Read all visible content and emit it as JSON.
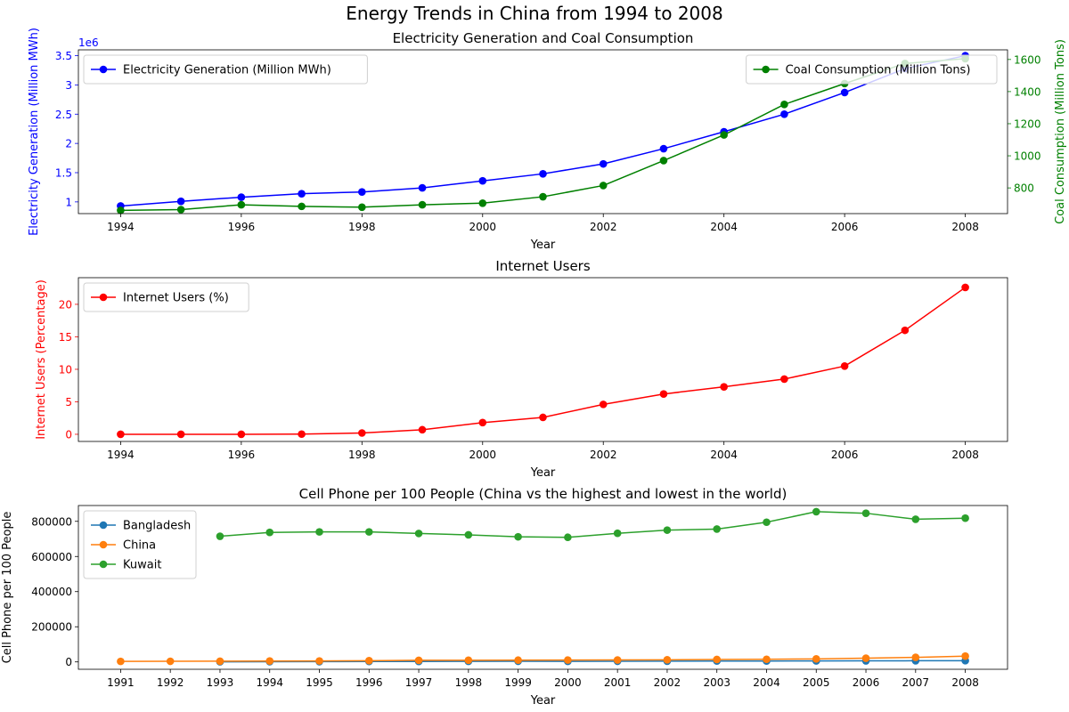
{
  "figure": {
    "suptitle": "Energy Trends in China from 1994 to 2008"
  },
  "chart_data": [
    {
      "type": "line",
      "title": "Electricity Generation and Coal Consumption",
      "xlabel": "Year",
      "xlim": [
        1993.3,
        2008.7
      ],
      "xticks": [
        1994,
        1996,
        1998,
        2000,
        2002,
        2004,
        2006,
        2008
      ],
      "x": [
        1994,
        1995,
        1996,
        1997,
        1998,
        1999,
        2000,
        2001,
        2002,
        2003,
        2004,
        2005,
        2006,
        2007,
        2008
      ],
      "ylabel": "Electricity Generation (Million MWh)",
      "ylabel_color": "#0000ff",
      "ylim": [
        0.8,
        3.6
      ],
      "yticks": [
        1.0,
        1.5,
        2.0,
        2.5,
        3.0,
        3.5
      ],
      "y_offset_text": "1e6",
      "y2label": "Coal Consumption (Million Tons)",
      "y2label_color": "#008000",
      "y2lim": [
        640,
        1660
      ],
      "y2ticks": [
        800,
        1000,
        1200,
        1400,
        1600
      ],
      "series": [
        {
          "name": "Electricity Generation (Million MWh)",
          "axis": "left",
          "color": "#0000ff",
          "legend": "upper left",
          "values": [
            0.93,
            1.01,
            1.08,
            1.14,
            1.17,
            1.24,
            1.36,
            1.48,
            1.65,
            1.91,
            2.2,
            2.5,
            2.87,
            3.28,
            3.5
          ]
        },
        {
          "name": "Coal Consumption (Million Tons)",
          "axis": "right",
          "color": "#008000",
          "legend": "upper right",
          "values": [
            660,
            665,
            695,
            685,
            680,
            695,
            705,
            745,
            815,
            970,
            1130,
            1320,
            1450,
            1575,
            1605
          ]
        }
      ]
    },
    {
      "type": "line",
      "title": "Internet Users",
      "xlabel": "Year",
      "xlim": [
        1993.3,
        2008.7
      ],
      "xticks": [
        1994,
        1996,
        1998,
        2000,
        2002,
        2004,
        2006,
        2008
      ],
      "x": [
        1994,
        1995,
        1996,
        1997,
        1998,
        1999,
        2000,
        2001,
        2002,
        2003,
        2004,
        2005,
        2006,
        2007,
        2008
      ],
      "ylabel": "Internet Users (Percentage)",
      "ylabel_color": "#ff0000",
      "ylim": [
        -1.1,
        24.1
      ],
      "yticks": [
        0,
        5,
        10,
        15,
        20
      ],
      "series": [
        {
          "name": "Internet Users (%)",
          "color": "#ff0000",
          "legend": "upper left",
          "values": [
            0.0,
            0.0,
            0.0,
            0.03,
            0.2,
            0.7,
            1.8,
            2.6,
            4.6,
            6.2,
            7.3,
            8.5,
            10.5,
            16.0,
            22.6
          ]
        }
      ]
    },
    {
      "type": "line",
      "title": "Cell Phone per 100 People (China vs the highest and lowest in the world)",
      "xlabel": "Year",
      "xlim": [
        1990.15,
        2008.85
      ],
      "xticks": [
        1991,
        1992,
        1993,
        1994,
        1995,
        1996,
        1997,
        1998,
        1999,
        2000,
        2001,
        2002,
        2003,
        2004,
        2005,
        2006,
        2007,
        2008
      ],
      "x": [
        1991,
        1992,
        1993,
        1994,
        1995,
        1996,
        1997,
        1998,
        1999,
        2000,
        2001,
        2002,
        2003,
        2004,
        2005,
        2006,
        2007,
        2008
      ],
      "ylabel": "Cell Phone per 100 People",
      "ylim": [
        -42000,
        890000
      ],
      "yticks": [
        0,
        200000,
        400000,
        600000,
        800000
      ],
      "legend": "upper left",
      "series": [
        {
          "name": "Bangladesh",
          "color": "#1f77b4",
          "values": [
            null,
            null,
            500,
            1000,
            1500,
            2500,
            2500,
            3000,
            3500,
            3000,
            3500,
            4000,
            5000,
            5000,
            5500,
            6000,
            6500,
            7000
          ]
        },
        {
          "name": "China",
          "color": "#ff7f0e",
          "values": [
            3000,
            3500,
            4000,
            5000,
            5500,
            7000,
            9000,
            9500,
            10000,
            10500,
            11000,
            12000,
            14000,
            15000,
            17000,
            21000,
            26000,
            33000
          ]
        },
        {
          "name": "Kuwait",
          "color": "#2ca02c",
          "values": [
            null,
            null,
            715000,
            737000,
            740000,
            740000,
            731000,
            723000,
            712000,
            709000,
            732000,
            750000,
            756000,
            795000,
            855000,
            846000,
            812000,
            818000
          ]
        }
      ]
    }
  ]
}
